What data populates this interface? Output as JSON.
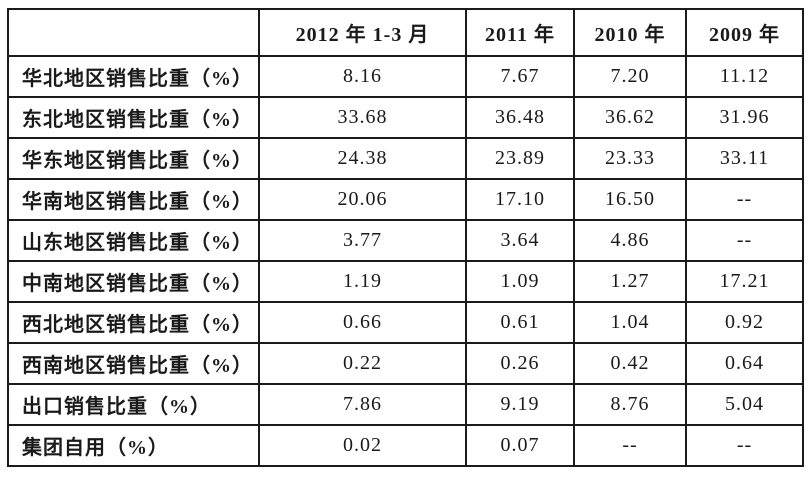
{
  "colors": {
    "background": "#ffffff",
    "text": "#1a1a1a",
    "border": "#1a1a1a"
  },
  "chart_data": {
    "type": "table",
    "title": "",
    "missing_value_marker": "--",
    "columns": [
      "",
      "2012 年 1-3 月",
      "2011 年",
      "2010 年",
      "2009 年"
    ],
    "rows": [
      {
        "label": "华北地区销售比重（%）",
        "values": [
          "8.16",
          "7.67",
          "7.20",
          "11.12"
        ]
      },
      {
        "label": "东北地区销售比重（%）",
        "values": [
          "33.68",
          "36.48",
          "36.62",
          "31.96"
        ]
      },
      {
        "label": "华东地区销售比重（%）",
        "values": [
          "24.38",
          "23.89",
          "23.33",
          "33.11"
        ]
      },
      {
        "label": "华南地区销售比重（%）",
        "values": [
          "20.06",
          "17.10",
          "16.50",
          "--"
        ]
      },
      {
        "label": "山东地区销售比重（%）",
        "values": [
          "3.77",
          "3.64",
          "4.86",
          "--"
        ]
      },
      {
        "label": "中南地区销售比重（%）",
        "values": [
          "1.19",
          "1.09",
          "1.27",
          "17.21"
        ]
      },
      {
        "label": "西北地区销售比重（%）",
        "values": [
          "0.66",
          "0.61",
          "1.04",
          "0.92"
        ]
      },
      {
        "label": "西南地区销售比重（%）",
        "values": [
          "0.22",
          "0.26",
          "0.42",
          "0.64"
        ]
      },
      {
        "label": "出口销售比重（%）",
        "values": [
          "7.86",
          "9.19",
          "8.76",
          "5.04"
        ]
      },
      {
        "label": "集团自用（%）",
        "values": [
          "0.02",
          "0.07",
          "--",
          "--"
        ]
      }
    ]
  }
}
